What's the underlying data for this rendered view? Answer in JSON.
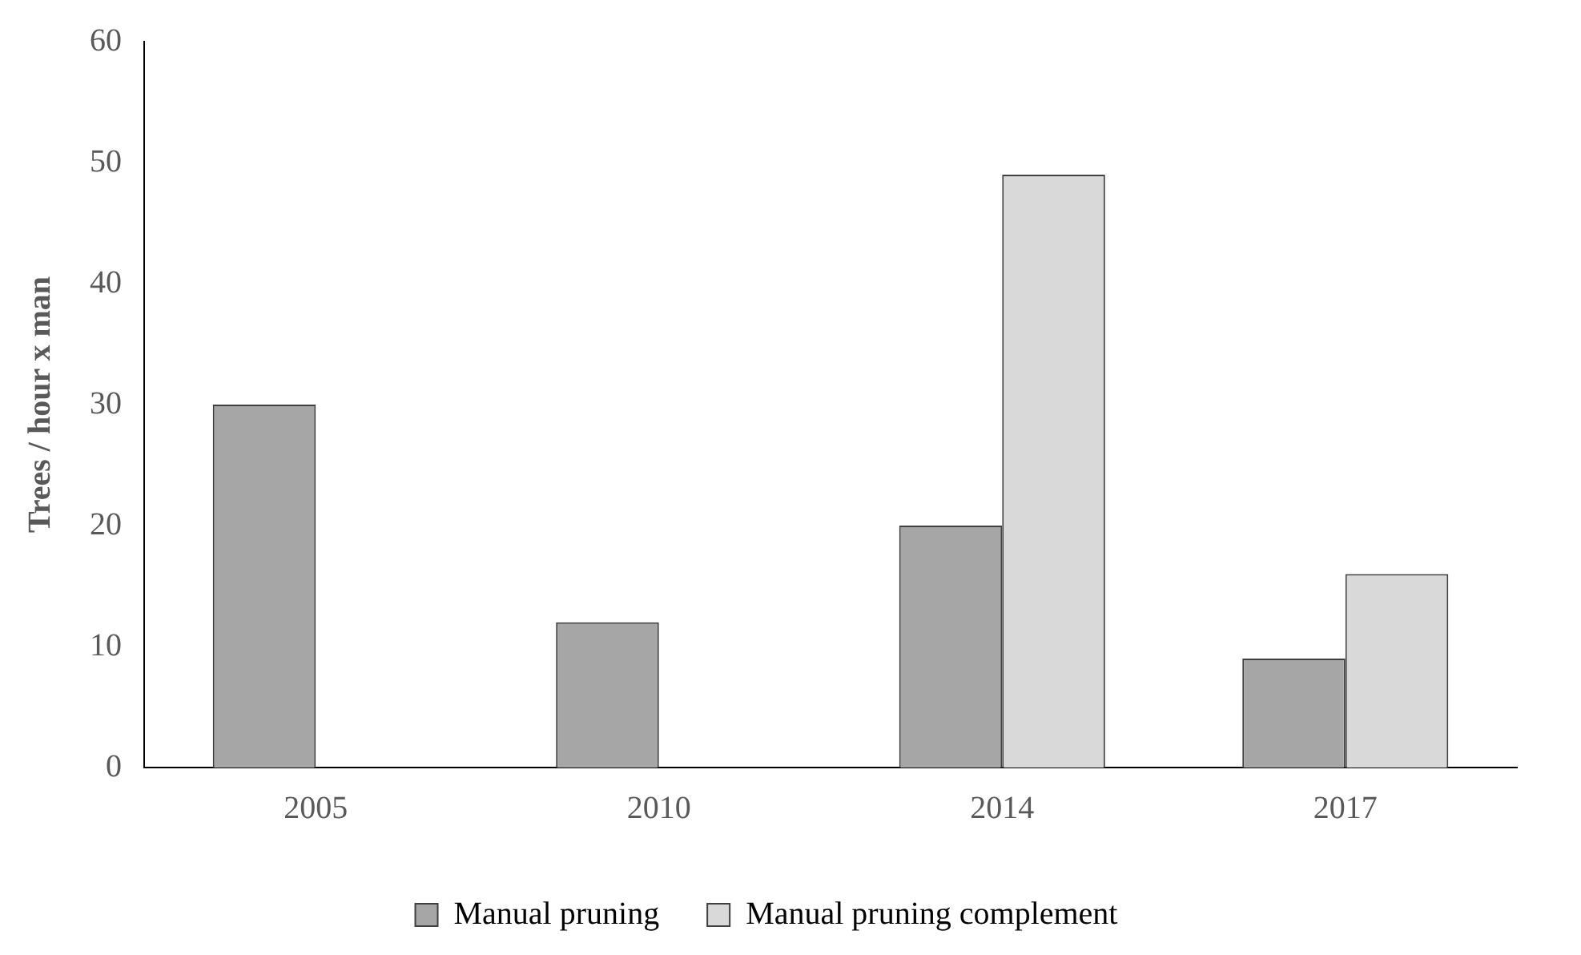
{
  "chart_data": {
    "type": "bar",
    "ylabel": "Trees / hour x man",
    "categories": [
      "2005",
      "2010",
      "2014",
      "2017"
    ],
    "series": [
      {
        "name": "Manual pruning",
        "color": "#a6a6a6",
        "values": [
          30,
          12,
          20,
          9
        ]
      },
      {
        "name": "Manual pruning complement",
        "color": "#d9d9d9",
        "values": [
          null,
          null,
          49,
          16
        ]
      }
    ],
    "ylim": [
      0,
      60
    ],
    "yticks": [
      0,
      10,
      20,
      30,
      40,
      50,
      60
    ],
    "grid": false,
    "legend": "bottom"
  }
}
